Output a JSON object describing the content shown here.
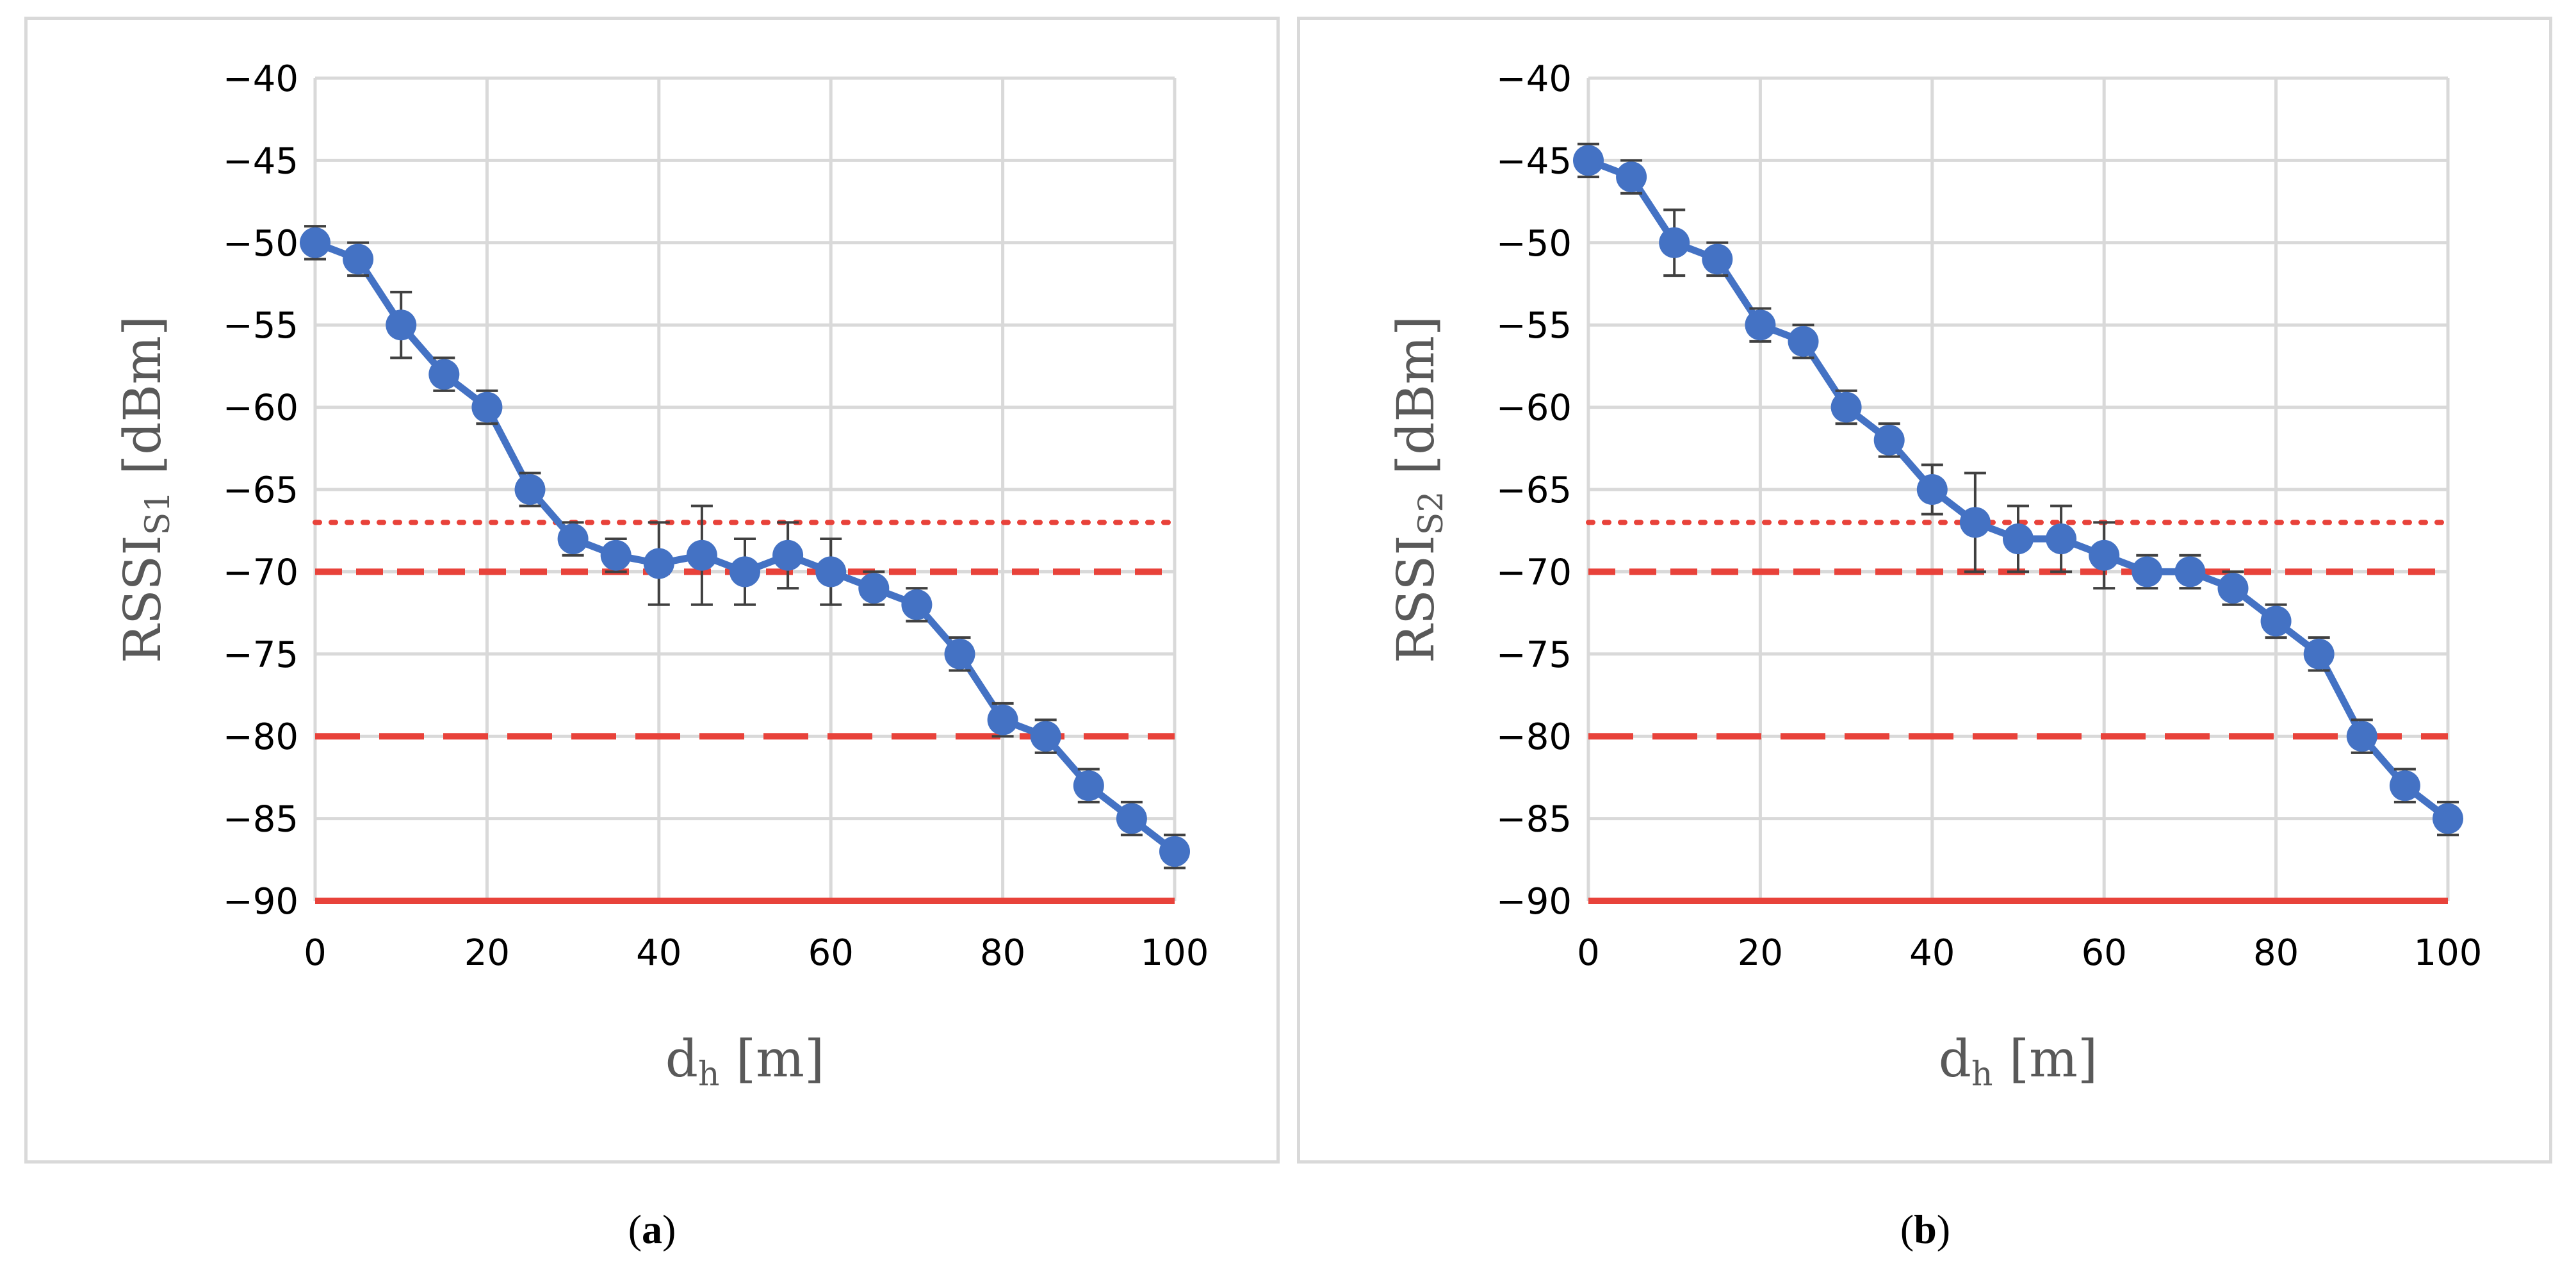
{
  "chart_data": [
    {
      "type": "line",
      "panel": "a",
      "caption_letter": "a",
      "ylabel_main": "RSSI",
      "ylabel_sub": "S1",
      "ylabel_unit": "[dBm]",
      "xlabel_main": "d",
      "xlabel_sub": "h",
      "xlabel_unit": "[m]",
      "xlim": [
        0,
        100
      ],
      "ylim": [
        -90,
        -40
      ],
      "x_ticks": [
        "0",
        "20",
        "40",
        "60",
        "80",
        "100"
      ],
      "y_ticks": [
        "-40",
        "-45",
        "-50",
        "-55",
        "-60",
        "-65",
        "-70",
        "-75",
        "-80",
        "-85",
        "-90"
      ],
      "grid": true,
      "series": [
        {
          "name": "RSSI S1",
          "color": "#4472c4",
          "x": [
            0,
            5,
            10,
            15,
            20,
            25,
            30,
            35,
            40,
            45,
            50,
            55,
            60,
            65,
            70,
            75,
            80,
            85,
            90,
            95,
            100
          ],
          "y": [
            -50,
            -51,
            -55,
            -58,
            -60,
            -65,
            -68,
            -69,
            -69.5,
            -69,
            -70,
            -69,
            -70,
            -71,
            -72,
            -75,
            -79,
            -80,
            -83,
            -85,
            -87
          ],
          "err": [
            1,
            1,
            2,
            1,
            1,
            1,
            1,
            1,
            2.5,
            3,
            2,
            2,
            2,
            1,
            1,
            1,
            1,
            1,
            1,
            1,
            1
          ]
        }
      ],
      "reference_lines": [
        {
          "value": -67,
          "style": "dotted",
          "color": "#e8423a"
        },
        {
          "value": -70,
          "style": "dashed",
          "color": "#e8423a"
        },
        {
          "value": -80,
          "style": "longdash",
          "color": "#e8423a"
        },
        {
          "value": -90,
          "style": "solid",
          "color": "#e8423a"
        }
      ]
    },
    {
      "type": "line",
      "panel": "b",
      "caption_letter": "b",
      "ylabel_main": "RSSI",
      "ylabel_sub": "S2",
      "ylabel_unit": "[dBm]",
      "xlabel_main": "d",
      "xlabel_sub": "h",
      "xlabel_unit": "[m]",
      "xlim": [
        0,
        100
      ],
      "ylim": [
        -90,
        -40
      ],
      "x_ticks": [
        "0",
        "20",
        "40",
        "60",
        "80",
        "100"
      ],
      "y_ticks": [
        "-40",
        "-45",
        "-50",
        "-55",
        "-60",
        "-65",
        "-70",
        "-75",
        "-80",
        "-85",
        "-90"
      ],
      "grid": true,
      "series": [
        {
          "name": "RSSI S2",
          "color": "#4472c4",
          "x": [
            0,
            5,
            10,
            15,
            20,
            25,
            30,
            35,
            40,
            45,
            50,
            55,
            60,
            65,
            70,
            75,
            80,
            85,
            90,
            95,
            100
          ],
          "y": [
            -45,
            -46,
            -50,
            -51,
            -55,
            -56,
            -60,
            -62,
            -65,
            -67,
            -68,
            -68,
            -69,
            -70,
            -70,
            -71,
            -73,
            -75,
            -80,
            -83,
            -85
          ],
          "err": [
            1,
            1,
            2,
            1,
            1,
            1,
            1,
            1,
            1.5,
            3,
            2,
            2,
            2,
            1,
            1,
            1,
            1,
            1,
            1,
            1,
            1
          ]
        }
      ],
      "reference_lines": [
        {
          "value": -67,
          "style": "dotted",
          "color": "#e8423a"
        },
        {
          "value": -70,
          "style": "dashed",
          "color": "#e8423a"
        },
        {
          "value": -80,
          "style": "longdash",
          "color": "#e8423a"
        },
        {
          "value": -90,
          "style": "solid",
          "color": "#e8423a"
        }
      ]
    }
  ],
  "colors": {
    "grid": "#d9d9d9",
    "frame": "#d9d9d9",
    "error_bar": "#404040"
  }
}
